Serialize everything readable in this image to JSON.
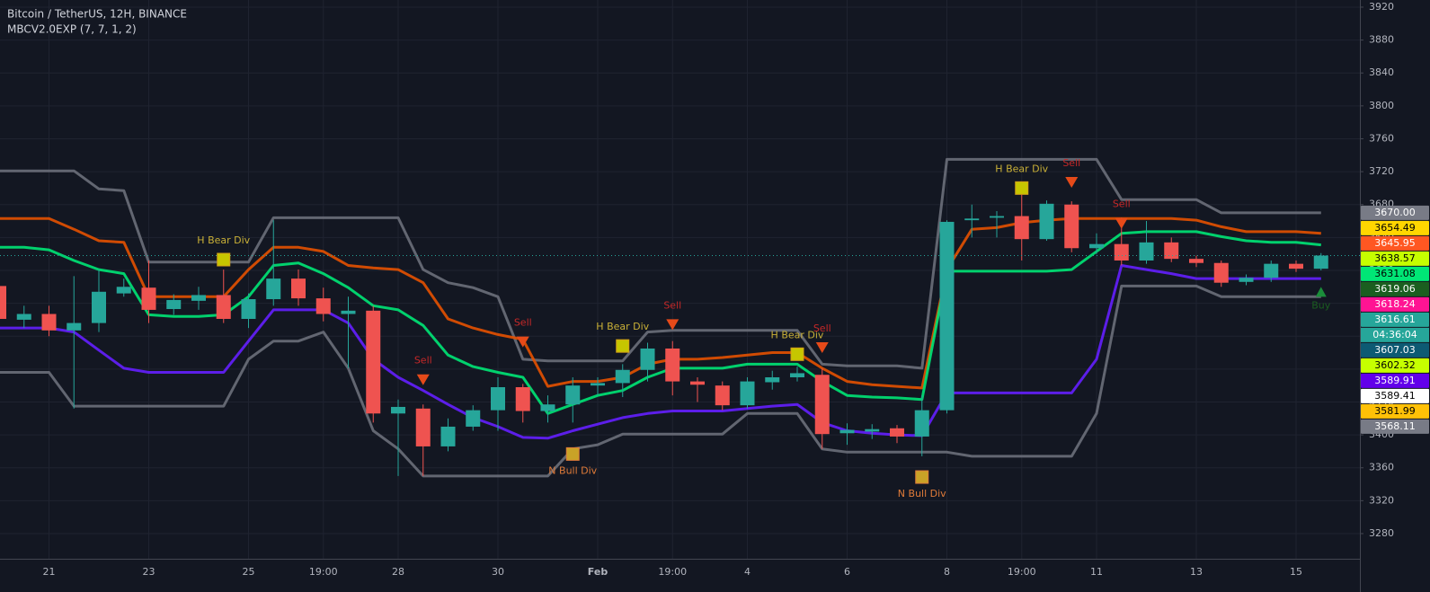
{
  "chart_data": {
    "type": "candlestick",
    "title": "Bitcoin / TetherUS, 12H, BINANCE",
    "subtitle": "MBCV2.0EXP (7, 7, 1, 2)",
    "categories": [
      null,
      null,
      "21",
      null,
      null,
      null,
      "23",
      null,
      null,
      null,
      "25",
      null,
      null,
      "19:00",
      null,
      null,
      "28",
      null,
      null,
      null,
      "30",
      null,
      null,
      null,
      "Feb",
      null,
      null,
      "19:00",
      null,
      null,
      "4",
      null,
      null,
      null,
      "6",
      null,
      null,
      null,
      "8",
      null,
      null,
      "19:00",
      null,
      null,
      "11",
      null,
      null,
      null,
      "13",
      null,
      null,
      null,
      "15",
      null
    ],
    "open": [
      3581,
      3540,
      3547,
      3527,
      3536,
      3572,
      3579,
      3553,
      3563,
      3570,
      3541,
      3565,
      3590,
      3566,
      3547,
      3551,
      3426,
      3432,
      3386,
      3410,
      3430,
      3458,
      3429,
      3437,
      3460,
      3463,
      3479,
      3505,
      3465,
      3460,
      3436,
      3464,
      3470,
      3473,
      3402,
      3404,
      3408,
      3398,
      3430,
      3661,
      3664,
      3666,
      3638,
      3680,
      3627,
      3632,
      3612,
      3634,
      3614,
      3609,
      3586,
      3591,
      3608,
      3602
    ],
    "high": [
      3601,
      3557,
      3557,
      3593,
      3601,
      3590,
      3612,
      3571,
      3580,
      3601,
      3572,
      3661,
      3601,
      3579,
      3568,
      3557,
      3443,
      3437,
      3420,
      3436,
      3470,
      3462,
      3448,
      3470,
      3470,
      3486,
      3512,
      3514,
      3470,
      3465,
      3470,
      3478,
      3483,
      3481,
      3414,
      3413,
      3412,
      3448,
      3661,
      3680,
      3672,
      3692,
      3685,
      3684,
      3645,
      3664,
      3660,
      3640,
      3618,
      3612,
      3595,
      3612,
      3612,
      3621
    ],
    "low": [
      3536,
      3530,
      3520,
      3432,
      3525,
      3568,
      3536,
      3546,
      3552,
      3536,
      3530,
      3557,
      3557,
      3538,
      3481,
      3415,
      3350,
      3350,
      3380,
      3405,
      3405,
      3415,
      3415,
      3415,
      3448,
      3446,
      3465,
      3448,
      3440,
      3430,
      3432,
      3455,
      3465,
      3383,
      3388,
      3395,
      3390,
      3374,
      3426,
      3640,
      3640,
      3612,
      3636,
      3622,
      3620,
      3606,
      3608,
      3610,
      3604,
      3580,
      3582,
      3586,
      3598,
      3600
    ],
    "close": [
      3541,
      3547,
      3527,
      3536,
      3574,
      3580,
      3552,
      3564,
      3570,
      3541,
      3565,
      3590,
      3566,
      3547,
      3551,
      3426,
      3434,
      3386,
      3410,
      3430,
      3458,
      3429,
      3437,
      3460,
      3463,
      3479,
      3505,
      3465,
      3461,
      3436,
      3465,
      3470,
      3475,
      3401,
      3406,
      3407,
      3398,
      3430,
      3659,
      3663,
      3666,
      3638,
      3681,
      3627,
      3632,
      3612,
      3634,
      3614,
      3609,
      3585,
      3591,
      3608,
      3602,
      3618
    ],
    "up_color": "#26a69a",
    "down_color": "#ef5350",
    "series": [
      {
        "color": "#6b6f7a",
        "values": [
          3721,
          3721,
          3721,
          3721,
          3699,
          3697,
          3610,
          3610,
          3610,
          3610,
          3610,
          3664,
          3664,
          3664,
          3664,
          3664,
          3664,
          3601,
          3585,
          3579,
          3568,
          3492,
          3490,
          3490,
          3490,
          3490,
          3525,
          3527,
          3527,
          3527,
          3527,
          3527,
          3527,
          3486,
          3484,
          3484,
          3484,
          3481,
          3735,
          3735,
          3735,
          3735,
          3735,
          3735,
          3735,
          3686,
          3686,
          3686,
          3686,
          3670,
          3670,
          3670,
          3670,
          3670
        ]
      },
      {
        "color": "#6b6f7a",
        "values": [
          3476,
          3476,
          3476,
          3435,
          3435,
          3435,
          3435,
          3435,
          3435,
          3435,
          3492,
          3514,
          3514,
          3525,
          3481,
          3405,
          3383,
          3350,
          3350,
          3350,
          3350,
          3350,
          3350,
          3383,
          3388,
          3401,
          3401,
          3401,
          3401,
          3401,
          3426,
          3426,
          3426,
          3383,
          3379,
          3379,
          3379,
          3379,
          3379,
          3374,
          3374,
          3374,
          3374,
          3374,
          3426,
          3581,
          3581,
          3581,
          3581,
          3568,
          3568,
          3568,
          3568,
          3568
        ]
      },
      {
        "color": "#e65100",
        "values": [
          3663,
          3663,
          3663,
          3650,
          3636,
          3634,
          3568,
          3568,
          3568,
          3568,
          3601,
          3628,
          3628,
          3623,
          3606,
          3603,
          3601,
          3585,
          3541,
          3530,
          3522,
          3516,
          3459,
          3465,
          3465,
          3470,
          3486,
          3492,
          3492,
          3494,
          3497,
          3500,
          3500,
          3481,
          3465,
          3461,
          3459,
          3457,
          3601,
          3650,
          3652,
          3658,
          3661,
          3663,
          3663,
          3663,
          3663,
          3663,
          3661,
          3653,
          3647,
          3647,
          3647,
          3645
        ]
      },
      {
        "color": "#00e676",
        "values": [
          3628,
          3628,
          3625,
          3612,
          3601,
          3596,
          3546,
          3544,
          3544,
          3546,
          3568,
          3606,
          3609,
          3596,
          3579,
          3557,
          3552,
          3533,
          3497,
          3483,
          3476,
          3470,
          3426,
          3437,
          3448,
          3454,
          3470,
          3481,
          3481,
          3481,
          3486,
          3486,
          3486,
          3465,
          3448,
          3446,
          3445,
          3443,
          3599,
          3599,
          3599,
          3599,
          3599,
          3601,
          3623,
          3645,
          3647,
          3647,
          3647,
          3641,
          3636,
          3634,
          3634,
          3631
        ]
      },
      {
        "color": "#651fff",
        "values": [
          3530,
          3530,
          3530,
          3525,
          3503,
          3481,
          3476,
          3476,
          3476,
          3476,
          3514,
          3552,
          3552,
          3552,
          3536,
          3492,
          3470,
          3454,
          3437,
          3421,
          3410,
          3397,
          3396,
          3405,
          3413,
          3421,
          3426,
          3429,
          3429,
          3429,
          3432,
          3435,
          3437,
          3415,
          3405,
          3402,
          3400,
          3399,
          3451,
          3451,
          3451,
          3451,
          3451,
          3451,
          3492,
          3606,
          3601,
          3596,
          3590,
          3590,
          3590,
          3590,
          3590,
          3590
        ]
      }
    ],
    "ylim": [
      3249.4,
      3928.7
    ],
    "yticks": [
      3280,
      3320,
      3360,
      3400,
      3440,
      3480,
      3520,
      3560,
      3600,
      3640,
      3680,
      3720,
      3760,
      3800,
      3840,
      3880,
      3920
    ],
    "grid": true,
    "price_tags": [
      {
        "value": 3670,
        "label": "3670.00",
        "color": "#787b86",
        "text_color": "#ffffff"
      },
      {
        "value": 3654.49,
        "label": "3654.49",
        "color": "#ffd600",
        "text_color": "#000000"
      },
      {
        "value": 3645.95,
        "label": "3645.95",
        "color": "#ff5722",
        "text_color": "#ffffff"
      },
      {
        "value": 3638.57,
        "label": "3638.57",
        "color": "#c6ff00",
        "text_color": "#000000"
      },
      {
        "value": 3631.08,
        "label": "3631.08",
        "color": "#00e676",
        "text_color": "#000000"
      },
      {
        "value": 3619.06,
        "label": "3619.06",
        "color": "#1b5e20",
        "text_color": "#ffffff"
      },
      {
        "value": 3618.24,
        "label": "3618.24",
        "color": "#ff1493",
        "text_color": "#ffffff"
      },
      {
        "value": 3616.61,
        "label": "3616.61",
        "color": "#26a69a",
        "text_color": "#ffffff"
      },
      {
        "value": 3607.03,
        "label": "3607.03",
        "color": "#0d5a73",
        "text_color": "#ffffff"
      },
      {
        "value": 3602.32,
        "label": "3602.32",
        "color": "#c6ff00",
        "text_color": "#000000"
      },
      {
        "value": 3589.91,
        "label": "3589.91",
        "color": "#6200ea",
        "text_color": "#ffffff"
      },
      {
        "value": 3589.41,
        "label": "3589.41",
        "color": "#ffffff",
        "text_color": "#000000"
      },
      {
        "value": 3581.99,
        "label": "3581.99",
        "color": "#ffc107",
        "text_color": "#000000"
      },
      {
        "value": 3568.11,
        "label": "3568.11",
        "color": "#787b86",
        "text_color": "#ffffff"
      }
    ],
    "countdown": "04:36:04",
    "annotations": [
      {
        "text": "H Bear Div",
        "x": 9,
        "y": 3636,
        "color": "#c9b037",
        "shape": "square"
      },
      {
        "text": "Sell",
        "x": 17,
        "y": 3490,
        "color": "#c62828",
        "shape": "triangle-down"
      },
      {
        "text": "Sell",
        "x": 21,
        "y": 3536,
        "color": "#c62828",
        "shape": "triangle-down"
      },
      {
        "text": "H Bear Div",
        "x": 25,
        "y": 3531,
        "color": "#c9b037",
        "shape": "square"
      },
      {
        "text": "N Bull Div",
        "x": 23,
        "y": 3356,
        "color": "#e07b39",
        "shape": "square-above"
      },
      {
        "text": "Sell",
        "x": 27,
        "y": 3557,
        "color": "#c62828",
        "shape": "triangle-down"
      },
      {
        "text": "H Bear Div",
        "x": 32,
        "y": 3521,
        "color": "#c9b037",
        "shape": "square"
      },
      {
        "text": "Sell",
        "x": 33,
        "y": 3529,
        "color": "#c62828",
        "shape": "triangle-down"
      },
      {
        "text": "N Bull Div",
        "x": 37,
        "y": 3328,
        "color": "#e07b39",
        "shape": "square-above"
      },
      {
        "text": "H Bear Div",
        "x": 41,
        "y": 3723,
        "color": "#c9b037",
        "shape": "square"
      },
      {
        "text": "Sell",
        "x": 43,
        "y": 3730,
        "color": "#c62828",
        "shape": "triangle-down"
      },
      {
        "text": "Sell",
        "x": 45,
        "y": 3680,
        "color": "#c62828",
        "shape": "triangle-down"
      },
      {
        "text": "Buy",
        "x": 53,
        "y": 3557,
        "color": "#1b5e20",
        "shape": "triangle-up"
      }
    ]
  }
}
